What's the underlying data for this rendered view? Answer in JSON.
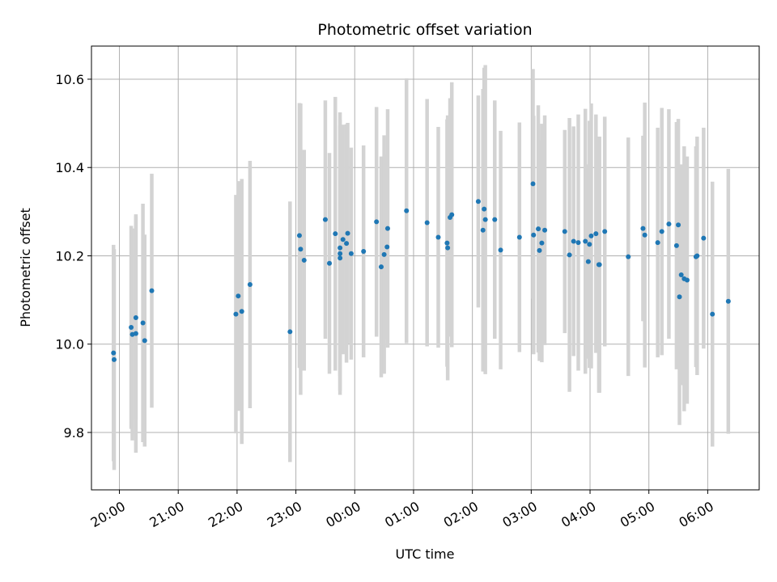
{
  "chart_data": {
    "type": "scatter",
    "title": "Photometric offset variation",
    "xlabel": "UTC time",
    "ylabel": "Photometric offset",
    "x_axis_type": "time",
    "x_ticks": [
      "20:00",
      "21:00",
      "22:00",
      "23:00",
      "00:00",
      "01:00",
      "02:00",
      "03:00",
      "04:00",
      "05:00",
      "06:00"
    ],
    "y_ticks": [
      "9.8",
      "10.0",
      "10.2",
      "10.4",
      "10.6"
    ],
    "ylim": [
      9.67,
      10.675
    ],
    "xlim_hours": [
      19.525,
      30.875
    ],
    "grid": true,
    "colors": {
      "points": "#1f77b4",
      "errorbars": "#d3d3d3",
      "grid": "#b0b0b0"
    },
    "series": [
      {
        "x": [
          19.9,
          19.91,
          20.2,
          20.22,
          20.28,
          20.28,
          20.4,
          20.43,
          20.55,
          21.98,
          22.02,
          22.08,
          22.22,
          22.9,
          23.06,
          23.08,
          23.14,
          23.5,
          23.57,
          23.67,
          23.75,
          23.75,
          23.75,
          23.8,
          23.86,
          23.88,
          23.94,
          24.15,
          24.37,
          24.45,
          24.5,
          24.55,
          24.56,
          24.88,
          25.23,
          25.42,
          25.57,
          25.58,
          25.62,
          25.65,
          26.1,
          26.18,
          26.2,
          26.22,
          26.38,
          26.48,
          26.8,
          27.03,
          27.04,
          27.12,
          27.14,
          27.18,
          27.23,
          27.57,
          27.65,
          27.72,
          27.8,
          27.92,
          27.97,
          27.99,
          28.02,
          28.1,
          28.15,
          28.16,
          28.25,
          28.65,
          28.9,
          28.93,
          29.15,
          29.22,
          29.34,
          29.47,
          29.5,
          29.52,
          29.55,
          29.6,
          29.65,
          29.8,
          29.82,
          29.93,
          30.08,
          30.35
        ],
        "y": [
          9.98,
          9.965,
          10.038,
          10.022,
          10.024,
          10.06,
          10.048,
          10.008,
          10.121,
          10.068,
          10.109,
          10.074,
          10.135,
          10.028,
          10.246,
          10.215,
          10.19,
          10.282,
          10.183,
          10.25,
          10.195,
          10.205,
          10.218,
          10.237,
          10.228,
          10.251,
          10.205,
          10.21,
          10.277,
          10.175,
          10.203,
          10.22,
          10.262,
          10.302,
          10.275,
          10.242,
          10.229,
          10.218,
          10.287,
          10.293,
          10.323,
          10.258,
          10.306,
          10.282,
          10.282,
          10.213,
          10.242,
          10.363,
          10.247,
          10.261,
          10.212,
          10.229,
          10.258,
          10.255,
          10.202,
          10.233,
          10.23,
          10.233,
          10.187,
          10.226,
          10.245,
          10.25,
          10.18,
          10.18,
          10.255,
          10.198,
          10.262,
          10.247,
          10.23,
          10.255,
          10.272,
          10.223,
          10.27,
          10.107,
          10.157,
          10.148,
          10.145,
          10.198,
          10.2,
          10.24,
          10.068,
          10.097
        ],
        "err": [
          0.245,
          0.25,
          0.23,
          0.24,
          0.27,
          0.23,
          0.27,
          0.24,
          0.265,
          0.27,
          0.26,
          0.3,
          0.28,
          0.295,
          0.3,
          0.33,
          0.25,
          0.27,
          0.25,
          0.31,
          0.3,
          0.32,
          0.29,
          0.26,
          0.27,
          0.25,
          0.24,
          0.24,
          0.26,
          0.25,
          0.27,
          0.21,
          0.27,
          0.3,
          0.28,
          0.25,
          0.28,
          0.3,
          0.27,
          0.3,
          0.24,
          0.32,
          0.32,
          0.35,
          0.27,
          0.27,
          0.26,
          0.26,
          0.27,
          0.28,
          0.25,
          0.27,
          0.26,
          0.23,
          0.31,
          0.26,
          0.29,
          0.3,
          0.22,
          0.28,
          0.3,
          0.27,
          0.29,
          0.29,
          0.26,
          0.27,
          0.21,
          0.3,
          0.26,
          0.28,
          0.26,
          0.28,
          0.24,
          0.29,
          0.25,
          0.3,
          0.28,
          0.25,
          0.27,
          0.25,
          0.3,
          0.3
        ]
      }
    ]
  }
}
